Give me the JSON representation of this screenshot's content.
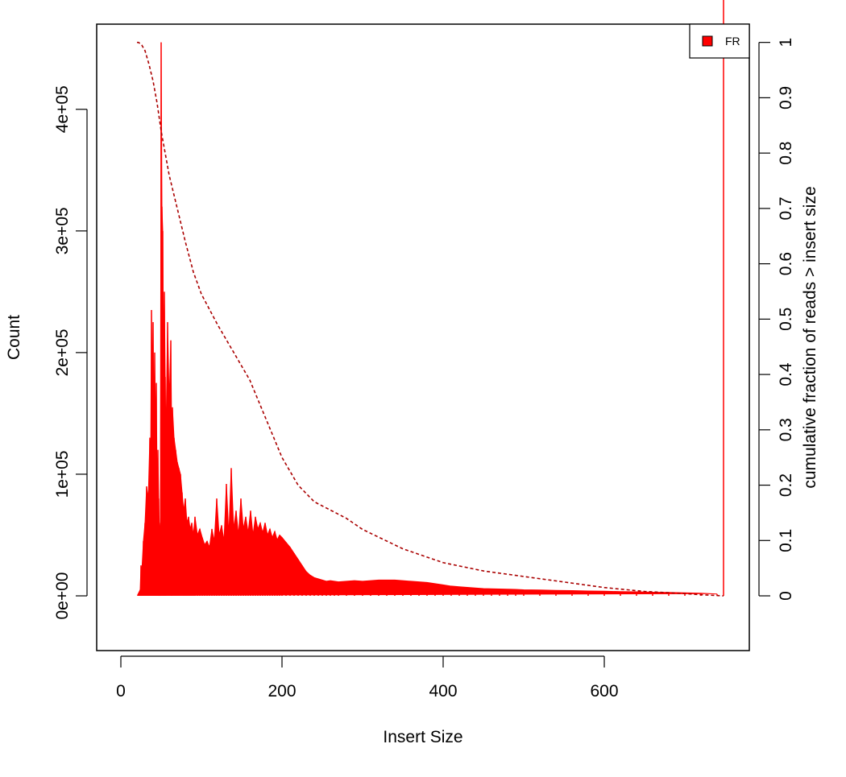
{
  "chart_data": {
    "type": "area",
    "title": "",
    "xlabel": "Insert Size",
    "ylabel": "Count",
    "ylabel_right": "cumulative fraction of reads > insert size",
    "xlim": [
      -30,
      780
    ],
    "ylim": [
      -45000,
      470000
    ],
    "ylim_right": [
      0,
      1
    ],
    "x_ticks": [
      0,
      200,
      400,
      600
    ],
    "x_tick_labels": [
      "0",
      "200",
      "400",
      "600"
    ],
    "y_ticks": [
      0,
      100000,
      200000,
      300000,
      400000
    ],
    "y_tick_labels": [
      "0e+00",
      "1e+05",
      "2e+05",
      "3e+05",
      "4e+05"
    ],
    "y_right_ticks": [
      0,
      0.1,
      0.2,
      0.3,
      0.4,
      0.5,
      0.6,
      0.7,
      0.8,
      0.9,
      1
    ],
    "y_right_tick_labels": [
      "0",
      "0.1",
      "0.2",
      "0.3",
      "0.4",
      "0.5",
      "0.6",
      "0.7",
      "0.8",
      "0.9",
      "1"
    ],
    "grid": false,
    "legend": {
      "position": "top-right",
      "entries": [
        {
          "label": "FR",
          "color": "#ff0000"
        }
      ]
    },
    "series": [
      {
        "name": "FR",
        "kind": "histogram",
        "color": "#ff0000",
        "x": [
          21,
          24,
          25,
          26,
          28,
          30,
          32,
          34,
          36,
          37,
          38,
          39,
          40,
          41,
          42,
          43,
          44,
          45,
          46,
          47,
          48,
          49,
          50,
          51,
          52,
          53,
          54,
          55,
          56,
          58,
          60,
          62,
          63,
          64,
          66,
          68,
          70,
          72,
          74,
          76,
          78,
          80,
          82,
          84,
          86,
          88,
          90,
          92,
          95,
          98,
          101,
          104,
          107,
          110,
          113,
          116,
          119,
          122,
          125,
          128,
          131,
          134,
          137,
          140,
          143,
          146,
          149,
          152,
          155,
          158,
          161,
          164,
          167,
          170,
          173,
          176,
          179,
          182,
          185,
          188,
          191,
          194,
          197,
          200,
          205,
          210,
          215,
          220,
          225,
          230,
          235,
          240,
          245,
          250,
          255,
          260,
          265,
          270,
          280,
          290,
          300,
          310,
          320,
          330,
          340,
          350,
          360,
          370,
          380,
          390,
          400,
          410,
          420,
          430,
          440,
          450,
          460,
          470,
          480,
          490,
          500,
          520,
          540,
          560,
          580,
          600,
          620,
          640,
          660,
          680,
          700,
          720,
          740,
          748
        ],
        "y": [
          1000,
          5000,
          25000,
          20000,
          45000,
          60000,
          90000,
          80000,
          130000,
          110000,
          235000,
          180000,
          225000,
          150000,
          200000,
          140000,
          175000,
          90000,
          120000,
          80000,
          50000,
          60000,
          455000,
          320000,
          300000,
          200000,
          250000,
          180000,
          130000,
          225000,
          160000,
          210000,
          140000,
          155000,
          130000,
          120000,
          110000,
          105000,
          100000,
          85000,
          70000,
          80000,
          60000,
          65000,
          55000,
          60000,
          50000,
          65000,
          50000,
          55000,
          48000,
          42000,
          45000,
          40000,
          55000,
          45000,
          80000,
          50000,
          58000,
          45000,
          92000,
          50000,
          105000,
          55000,
          70000,
          50000,
          80000,
          55000,
          65000,
          52000,
          70000,
          50000,
          65000,
          55000,
          60000,
          52000,
          60000,
          50000,
          55000,
          48000,
          53000,
          46000,
          50000,
          48000,
          44000,
          40000,
          35000,
          30000,
          25000,
          20000,
          17000,
          15000,
          14000,
          13000,
          12000,
          12500,
          12000,
          11500,
          12000,
          12500,
          12000,
          12500,
          13000,
          13000,
          13000,
          12500,
          12000,
          11500,
          11000,
          10000,
          9000,
          8000,
          7500,
          7000,
          6500,
          6000,
          5800,
          5600,
          5500,
          5300,
          5000,
          4800,
          4500,
          4300,
          4000,
          3800,
          3500,
          3300,
          3000,
          2800,
          2500,
          2200,
          1500
        ]
      },
      {
        "name": "",
        "kind": "cumulative",
        "axis": "right",
        "color": "#aa0000",
        "x": [
          20,
          22,
          26,
          30,
          35,
          40,
          45,
          50,
          55,
          60,
          70,
          80,
          90,
          100,
          120,
          140,
          160,
          180,
          200,
          220,
          240,
          260,
          280,
          300,
          350,
          400,
          450,
          500,
          550,
          600,
          650,
          700,
          720,
          748
        ],
        "y": [
          1.0,
          1.0,
          0.995,
          0.985,
          0.96,
          0.93,
          0.89,
          0.84,
          0.8,
          0.76,
          0.7,
          0.64,
          0.585,
          0.545,
          0.49,
          0.44,
          0.39,
          0.32,
          0.25,
          0.2,
          0.17,
          0.155,
          0.14,
          0.12,
          0.085,
          0.06,
          0.045,
          0.035,
          0.025,
          0.015,
          0.008,
          0.004,
          0.002,
          0.0
        ]
      }
    ]
  }
}
